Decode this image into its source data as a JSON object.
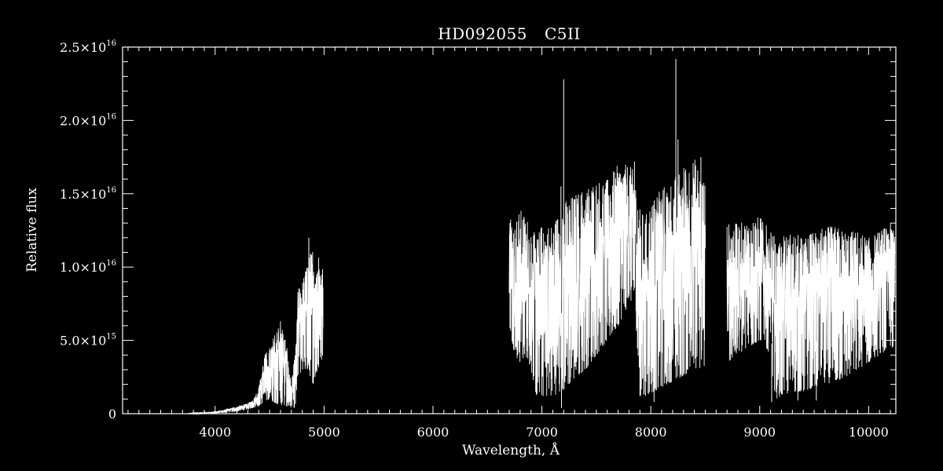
{
  "chart_data": {
    "type": "line",
    "title_star": "HD092055",
    "title_spectral_type": "C5II",
    "xlabel": "Wavelength, Å",
    "ylabel": "Relative flux",
    "xlim": [
      3150,
      10250
    ],
    "ylim": [
      0,
      2.5e+16
    ],
    "x_ticks": [
      4000,
      5000,
      6000,
      7000,
      8000,
      9000,
      10000
    ],
    "x_tick_labels": [
      "4000",
      "5000",
      "6000",
      "7000",
      "8000",
      "9000",
      "10000"
    ],
    "x_minor_step": 100,
    "y_ticks": [
      {
        "value": 0,
        "mantissa": "0",
        "exp": ""
      },
      {
        "value": 5000000000000000.0,
        "mantissa": "5.0×10",
        "exp": "15"
      },
      {
        "value": 1e+16,
        "mantissa": "1.0×10",
        "exp": "16"
      },
      {
        "value": 1.5e+16,
        "mantissa": "1.5×10",
        "exp": "16"
      },
      {
        "value": 2e+16,
        "mantissa": "2.0×10",
        "exp": "16"
      },
      {
        "value": 2.5e+16,
        "mantissa": "2.5×10",
        "exp": "16"
      }
    ],
    "y_minor_step": 1000000000000000.0,
    "line_color": "#ffffff",
    "background": "#000000",
    "grid": false,
    "legend": "none",
    "gap_between": [
      5000,
      6700
    ],
    "series": [
      {
        "x": [
          3750,
          3900,
          4000,
          4100,
          4200,
          4300,
          4350,
          4400,
          4450,
          4500,
          4550,
          4600,
          4650,
          4700,
          4740,
          4760,
          4800,
          4850,
          4900,
          4950,
          4990
        ],
        "low": [
          0,
          10000000000000.0,
          30000000000000.0,
          70000000000000.0,
          150000000000000.0,
          300000000000000.0,
          400000000000000.0,
          500000000000000.0,
          800000000000000.0,
          1000000000000000.0,
          700000000000000.0,
          600000000000000.0,
          500000000000000.0,
          400000000000000.0,
          400000000000000.0,
          2500000000000000.0,
          3000000000000000.0,
          3000000000000000.0,
          2000000000000000.0,
          3000000000000000.0,
          4000000000000000.0
        ],
        "high": [
          20000000000000.0,
          80000000000000.0,
          150000000000000.0,
          300000000000000.0,
          500000000000000.0,
          700000000000000.0,
          1000000000000000.0,
          1800000000000000.0,
          4000000000000000.0,
          4500000000000000.0,
          5500000000000000.0,
          6500000000000000.0,
          5000000000000000.0,
          2000000000000000.0,
          4500000000000000.0,
          8500000000000000.0,
          9000000000000000.0,
          1.05e+16,
          1.15e+16,
          1.1e+16,
          1e+16
        ]
      },
      {
        "x": [
          6700,
          6750,
          6800,
          6850,
          6900,
          6950,
          7000,
          7100,
          7200,
          7300,
          7400,
          7500,
          7600,
          7700,
          7800,
          7850,
          7900,
          7950,
          8000,
          8100,
          8200,
          8300,
          8400,
          8500
        ],
        "low": [
          6000000000000000.0,
          4000000000000000.0,
          3500000000000000.0,
          4000000000000000.0,
          3000000000000000.0,
          1200000000000000.0,
          1200000000000000.0,
          1200000000000000.0,
          1600000000000000.0,
          2400000000000000.0,
          3000000000000000.0,
          4000000000000000.0,
          5000000000000000.0,
          6000000000000000.0,
          7500000000000000.0,
          8000000000000000.0,
          1200000000000000.0,
          1200000000000000.0,
          1400000000000000.0,
          1800000000000000.0,
          2200000000000000.0,
          2600000000000000.0,
          3000000000000000.0,
          3200000000000000.0
        ],
        "high": [
          1.4e+16,
          1.3e+16,
          1.4e+16,
          1.35e+16,
          1.3e+16,
          1.2e+16,
          1.3e+16,
          1.3e+16,
          1.45e+16,
          1.5e+16,
          1.55e+16,
          1.6e+16,
          1.6e+16,
          1.7e+16,
          1.7e+16,
          1.65e+16,
          1.4e+16,
          1.35e+16,
          1.45e+16,
          1.55e+16,
          1.6e+16,
          1.7e+16,
          1.75e+16,
          1.6e+16
        ]
      },
      {
        "x": [
          8700,
          8800,
          8900,
          9000,
          9050,
          9100,
          9150,
          9200,
          9300,
          9400,
          9500,
          9600,
          9700,
          9800,
          9900,
          10000,
          10100,
          10200,
          10240
        ],
        "low": [
          3500000000000000.0,
          4000000000000000.0,
          4500000000000000.0,
          5000000000000000.0,
          5000000000000000.0,
          3000000000000000.0,
          1000000000000000.0,
          1200000000000000.0,
          1500000000000000.0,
          1500000000000000.0,
          1800000000000000.0,
          2000000000000000.0,
          2200000000000000.0,
          2500000000000000.0,
          3000000000000000.0,
          3500000000000000.0,
          4000000000000000.0,
          4500000000000000.0,
          4500000000000000.0
        ],
        "high": [
          1.3e+16,
          1.3e+16,
          1.32e+16,
          1.35e+16,
          1.3e+16,
          1.25e+16,
          1.2e+16,
          1.2e+16,
          1.25e+16,
          1.2e+16,
          1.25e+16,
          1.28e+16,
          1.28e+16,
          1.25e+16,
          1.25e+16,
          1.2e+16,
          1.25e+16,
          1.3e+16,
          1.3e+16
        ]
      }
    ],
    "spikes": [
      {
        "x": 7200,
        "y": 2.28e+16
      },
      {
        "x": 7175,
        "y": 1.55e+16
      },
      {
        "x": 8230,
        "y": 2.42e+16
      },
      {
        "x": 8250,
        "y": 1.87e+16
      },
      {
        "x": 8460,
        "y": 1.75e+16
      },
      {
        "x": 7850,
        "y": 1.72e+16
      },
      {
        "x": 4860,
        "y": 1.2e+16
      }
    ],
    "dips": [
      {
        "x": 7180,
        "y": 400000000000000.0
      },
      {
        "x": 8030,
        "y": 800000000000000.0
      },
      {
        "x": 9110,
        "y": 800000000000000.0
      },
      {
        "x": 9350,
        "y": 900000000000000.0
      },
      {
        "x": 9520,
        "y": 900000000000000.0
      }
    ]
  }
}
